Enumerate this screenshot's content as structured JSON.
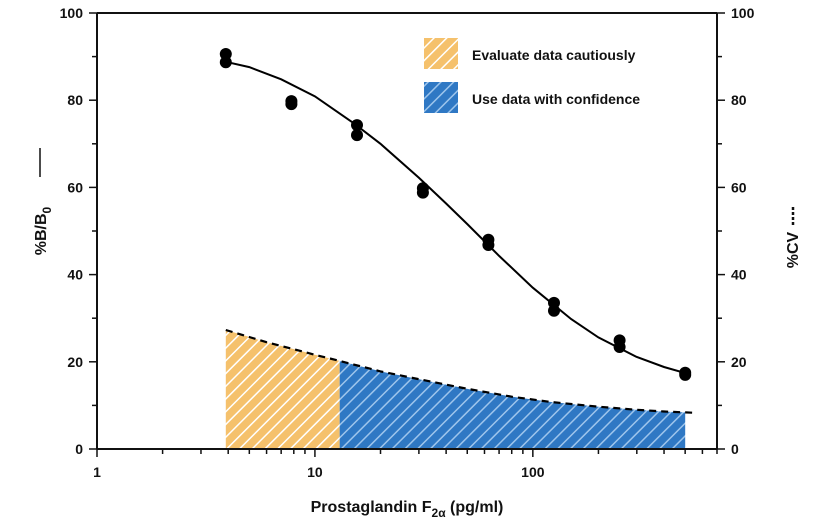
{
  "chart_data": {
    "type": "scatter",
    "x_scale": "log",
    "xlabel": {
      "main": "Prostaglandin F",
      "subscript": "2α",
      "unit": " (pg/ml)"
    },
    "ylabel_left": {
      "main": "%B/B",
      "subscript": "0"
    },
    "ylabel_right": "%CV",
    "xlim": [
      1,
      700
    ],
    "ylim": [
      0,
      100
    ],
    "x_ticks": [
      1,
      10,
      100
    ],
    "y_ticks": [
      0,
      20,
      40,
      60,
      80,
      100
    ],
    "colors": {
      "points": "#000000",
      "caution": "#f5c16c",
      "confidence": "#2f78c4",
      "curve": "#000000"
    },
    "series": [
      {
        "name": "%B/B0",
        "axis": "left",
        "style": "points",
        "x": [
          3.9,
          3.9,
          7.8,
          7.8,
          15.6,
          15.6,
          31.3,
          31.3,
          62.5,
          62.5,
          125,
          125,
          250,
          250,
          500,
          500
        ],
        "y": [
          90.6,
          88.7,
          79.8,
          79.1,
          74.3,
          72.0,
          59.8,
          58.8,
          48.0,
          46.8,
          33.5,
          31.7,
          24.9,
          23.4,
          17.5,
          17.0
        ]
      },
      {
        "name": "%B/B0 fit",
        "axis": "left",
        "style": "solid-line",
        "x": [
          3.9,
          5,
          7,
          10,
          15,
          20,
          30,
          40,
          50,
          70,
          100,
          150,
          200,
          300,
          400,
          500
        ],
        "y": [
          88.8,
          87.6,
          84.8,
          80.9,
          74.8,
          70.0,
          62.2,
          56.3,
          51.6,
          44.3,
          37.0,
          29.8,
          25.6,
          21.1,
          18.8,
          17.4
        ]
      },
      {
        "name": "%CV",
        "axis": "right",
        "style": "dashed-line",
        "x": [
          3.9,
          6,
          8,
          10,
          13,
          20,
          30,
          50,
          80,
          120,
          200,
          300,
          400,
          500,
          550
        ],
        "y": [
          27.3,
          24.5,
          22.9,
          21.6,
          20.2,
          17.8,
          16.0,
          13.8,
          12.0,
          10.8,
          9.7,
          9.0,
          8.6,
          8.4,
          8.3
        ]
      }
    ],
    "regions": [
      {
        "name": "Evaluate data cautiously",
        "x_from": 3.9,
        "x_to": 13,
        "color": "caution"
      },
      {
        "name": "Use data with confidence",
        "x_from": 13,
        "x_to": 500,
        "color": "confidence"
      }
    ],
    "legend": {
      "position": "top-right",
      "items": [
        {
          "label": "Evaluate data cautiously",
          "color": "caution"
        },
        {
          "label": "Use data with confidence",
          "color": "confidence"
        }
      ]
    }
  }
}
